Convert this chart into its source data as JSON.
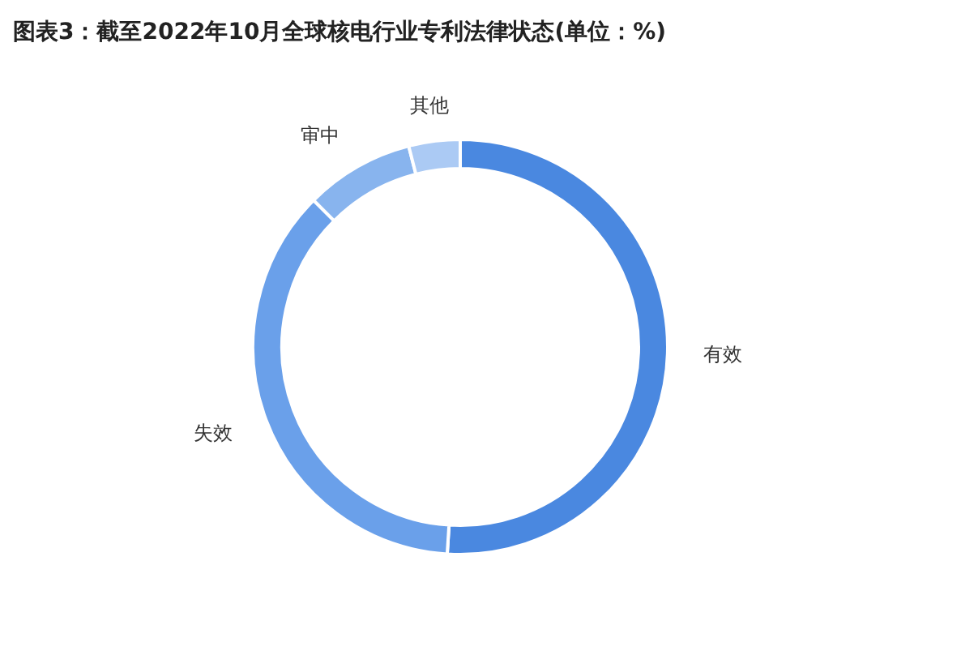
{
  "chart_data": {
    "type": "donut",
    "title": "图表3：截至2022年10月全球核电行业专利法律状态(单位：%)",
    "categories": [
      "有效",
      "失效",
      "审中",
      "其他"
    ],
    "values": [
      51,
      36.5,
      8.5,
      4
    ],
    "colors": [
      "#4a88e0",
      "#6aa0ea",
      "#88b4ee",
      "#abcaf4"
    ]
  }
}
